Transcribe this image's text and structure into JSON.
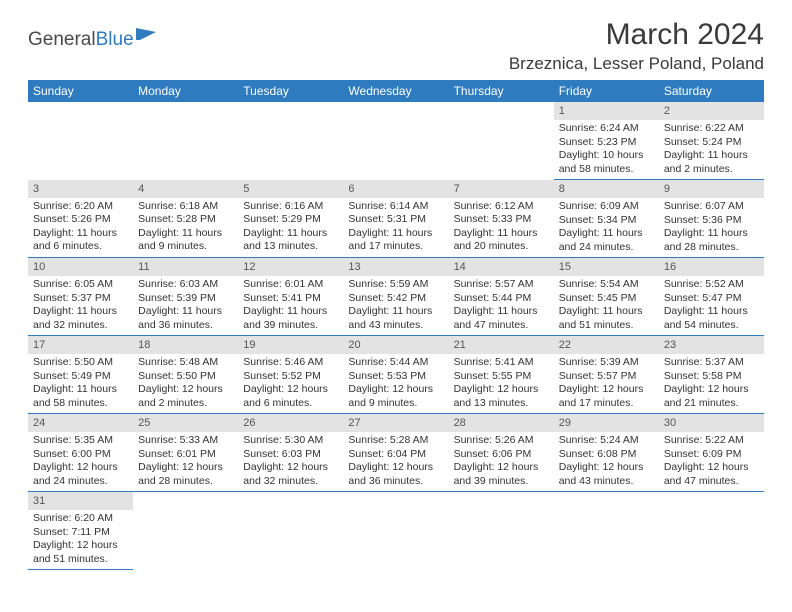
{
  "logo": {
    "word1": "General",
    "word2": "Blue"
  },
  "title": "March 2024",
  "location": "Brzeznica, Lesser Poland, Poland",
  "colors": {
    "header_bg": "#2f7bbf",
    "header_fg": "#ffffff",
    "daynum_bg": "#e3e3e3",
    "daynum_fg": "#555555",
    "row_border": "#2f7bbf",
    "text": "#333333",
    "logo_gray": "#4a4a4a",
    "logo_blue": "#2f7bbf"
  },
  "weekdays": [
    "Sunday",
    "Monday",
    "Tuesday",
    "Wednesday",
    "Thursday",
    "Friday",
    "Saturday"
  ],
  "weeks": [
    [
      null,
      null,
      null,
      null,
      null,
      {
        "n": "1",
        "sr": "Sunrise: 6:24 AM",
        "ss": "Sunset: 5:23 PM",
        "dl1": "Daylight: 10 hours",
        "dl2": "and 58 minutes."
      },
      {
        "n": "2",
        "sr": "Sunrise: 6:22 AM",
        "ss": "Sunset: 5:24 PM",
        "dl1": "Daylight: 11 hours",
        "dl2": "and 2 minutes."
      }
    ],
    [
      {
        "n": "3",
        "sr": "Sunrise: 6:20 AM",
        "ss": "Sunset: 5:26 PM",
        "dl1": "Daylight: 11 hours",
        "dl2": "and 6 minutes."
      },
      {
        "n": "4",
        "sr": "Sunrise: 6:18 AM",
        "ss": "Sunset: 5:28 PM",
        "dl1": "Daylight: 11 hours",
        "dl2": "and 9 minutes."
      },
      {
        "n": "5",
        "sr": "Sunrise: 6:16 AM",
        "ss": "Sunset: 5:29 PM",
        "dl1": "Daylight: 11 hours",
        "dl2": "and 13 minutes."
      },
      {
        "n": "6",
        "sr": "Sunrise: 6:14 AM",
        "ss": "Sunset: 5:31 PM",
        "dl1": "Daylight: 11 hours",
        "dl2": "and 17 minutes."
      },
      {
        "n": "7",
        "sr": "Sunrise: 6:12 AM",
        "ss": "Sunset: 5:33 PM",
        "dl1": "Daylight: 11 hours",
        "dl2": "and 20 minutes."
      },
      {
        "n": "8",
        "sr": "Sunrise: 6:09 AM",
        "ss": "Sunset: 5:34 PM",
        "dl1": "Daylight: 11 hours",
        "dl2": "and 24 minutes."
      },
      {
        "n": "9",
        "sr": "Sunrise: 6:07 AM",
        "ss": "Sunset: 5:36 PM",
        "dl1": "Daylight: 11 hours",
        "dl2": "and 28 minutes."
      }
    ],
    [
      {
        "n": "10",
        "sr": "Sunrise: 6:05 AM",
        "ss": "Sunset: 5:37 PM",
        "dl1": "Daylight: 11 hours",
        "dl2": "and 32 minutes."
      },
      {
        "n": "11",
        "sr": "Sunrise: 6:03 AM",
        "ss": "Sunset: 5:39 PM",
        "dl1": "Daylight: 11 hours",
        "dl2": "and 36 minutes."
      },
      {
        "n": "12",
        "sr": "Sunrise: 6:01 AM",
        "ss": "Sunset: 5:41 PM",
        "dl1": "Daylight: 11 hours",
        "dl2": "and 39 minutes."
      },
      {
        "n": "13",
        "sr": "Sunrise: 5:59 AM",
        "ss": "Sunset: 5:42 PM",
        "dl1": "Daylight: 11 hours",
        "dl2": "and 43 minutes."
      },
      {
        "n": "14",
        "sr": "Sunrise: 5:57 AM",
        "ss": "Sunset: 5:44 PM",
        "dl1": "Daylight: 11 hours",
        "dl2": "and 47 minutes."
      },
      {
        "n": "15",
        "sr": "Sunrise: 5:54 AM",
        "ss": "Sunset: 5:45 PM",
        "dl1": "Daylight: 11 hours",
        "dl2": "and 51 minutes."
      },
      {
        "n": "16",
        "sr": "Sunrise: 5:52 AM",
        "ss": "Sunset: 5:47 PM",
        "dl1": "Daylight: 11 hours",
        "dl2": "and 54 minutes."
      }
    ],
    [
      {
        "n": "17",
        "sr": "Sunrise: 5:50 AM",
        "ss": "Sunset: 5:49 PM",
        "dl1": "Daylight: 11 hours",
        "dl2": "and 58 minutes."
      },
      {
        "n": "18",
        "sr": "Sunrise: 5:48 AM",
        "ss": "Sunset: 5:50 PM",
        "dl1": "Daylight: 12 hours",
        "dl2": "and 2 minutes."
      },
      {
        "n": "19",
        "sr": "Sunrise: 5:46 AM",
        "ss": "Sunset: 5:52 PM",
        "dl1": "Daylight: 12 hours",
        "dl2": "and 6 minutes."
      },
      {
        "n": "20",
        "sr": "Sunrise: 5:44 AM",
        "ss": "Sunset: 5:53 PM",
        "dl1": "Daylight: 12 hours",
        "dl2": "and 9 minutes."
      },
      {
        "n": "21",
        "sr": "Sunrise: 5:41 AM",
        "ss": "Sunset: 5:55 PM",
        "dl1": "Daylight: 12 hours",
        "dl2": "and 13 minutes."
      },
      {
        "n": "22",
        "sr": "Sunrise: 5:39 AM",
        "ss": "Sunset: 5:57 PM",
        "dl1": "Daylight: 12 hours",
        "dl2": "and 17 minutes."
      },
      {
        "n": "23",
        "sr": "Sunrise: 5:37 AM",
        "ss": "Sunset: 5:58 PM",
        "dl1": "Daylight: 12 hours",
        "dl2": "and 21 minutes."
      }
    ],
    [
      {
        "n": "24",
        "sr": "Sunrise: 5:35 AM",
        "ss": "Sunset: 6:00 PM",
        "dl1": "Daylight: 12 hours",
        "dl2": "and 24 minutes."
      },
      {
        "n": "25",
        "sr": "Sunrise: 5:33 AM",
        "ss": "Sunset: 6:01 PM",
        "dl1": "Daylight: 12 hours",
        "dl2": "and 28 minutes."
      },
      {
        "n": "26",
        "sr": "Sunrise: 5:30 AM",
        "ss": "Sunset: 6:03 PM",
        "dl1": "Daylight: 12 hours",
        "dl2": "and 32 minutes."
      },
      {
        "n": "27",
        "sr": "Sunrise: 5:28 AM",
        "ss": "Sunset: 6:04 PM",
        "dl1": "Daylight: 12 hours",
        "dl2": "and 36 minutes."
      },
      {
        "n": "28",
        "sr": "Sunrise: 5:26 AM",
        "ss": "Sunset: 6:06 PM",
        "dl1": "Daylight: 12 hours",
        "dl2": "and 39 minutes."
      },
      {
        "n": "29",
        "sr": "Sunrise: 5:24 AM",
        "ss": "Sunset: 6:08 PM",
        "dl1": "Daylight: 12 hours",
        "dl2": "and 43 minutes."
      },
      {
        "n": "30",
        "sr": "Sunrise: 5:22 AM",
        "ss": "Sunset: 6:09 PM",
        "dl1": "Daylight: 12 hours",
        "dl2": "and 47 minutes."
      }
    ],
    [
      {
        "n": "31",
        "sr": "Sunrise: 6:20 AM",
        "ss": "Sunset: 7:11 PM",
        "dl1": "Daylight: 12 hours",
        "dl2": "and 51 minutes."
      },
      null,
      null,
      null,
      null,
      null,
      null
    ]
  ]
}
